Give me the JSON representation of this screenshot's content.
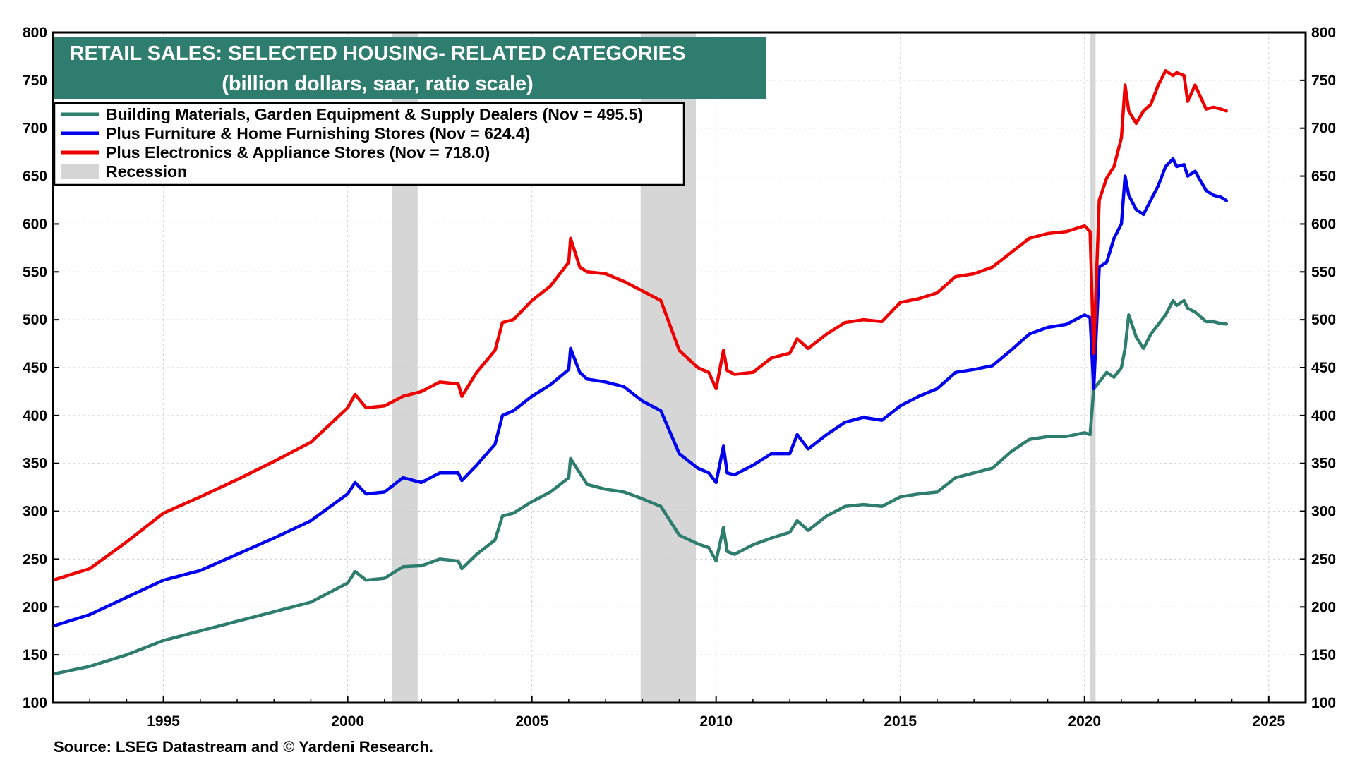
{
  "chart_data": {
    "type": "line",
    "title": "RETAIL SALES: SELECTED HOUSING- RELATED CATEGORIES",
    "subtitle": "(billion dollars, saar, ratio scale)",
    "source": "Source: LSEG Datastream and © Yardeni Research.",
    "ylim": [
      100,
      800
    ],
    "xlim": [
      1992.0,
      2026.0
    ],
    "yticks": [
      "800",
      "750",
      "700",
      "650",
      "600",
      "550",
      "500",
      "450",
      "400",
      "350",
      "300",
      "250",
      "200",
      "150",
      "100"
    ],
    "xticks": [
      "1995",
      "2000",
      "2005",
      "2010",
      "2015",
      "2020",
      "2025"
    ],
    "grid": true,
    "recessions": [
      [
        2001.2,
        2001.9
      ],
      [
        2007.95,
        2009.45
      ],
      [
        2020.15,
        2020.3
      ]
    ],
    "legend": {
      "placement": "top-left",
      "entries": [
        "Building Materials, Garden Equipment & Supply Dealers (Nov = 495.5)",
        "Plus Furniture & Home Furnishing Stores (Nov = 624.4)",
        "Plus Electronics & Appliance Stores (Nov = 718.0)",
        "Recession"
      ]
    },
    "colors": {
      "building": "#2e7d6f",
      "furniture": "#0000ee",
      "electronics": "#ee0000",
      "recession": "#d6d6d6",
      "title_bg": "#2e7d6f"
    },
    "series": [
      {
        "name": "Building Materials, Garden Equipment & Supply Dealers",
        "color": "#2e7d6f",
        "x": [
          1992.0,
          1993.0,
          1994.0,
          1995.0,
          1996.0,
          1997.0,
          1998.0,
          1999.0,
          2000.0,
          2000.2,
          2000.5,
          2001.0,
          2001.5,
          2002.0,
          2002.5,
          2003.0,
          2003.1,
          2003.5,
          2004.0,
          2004.2,
          2004.5,
          2005.0,
          2005.5,
          2006.0,
          2006.05,
          2006.3,
          2006.5,
          2007.0,
          2007.5,
          2008.0,
          2008.5,
          2009.0,
          2009.5,
          2009.8,
          2010.0,
          2010.2,
          2010.3,
          2010.5,
          2011.0,
          2011.5,
          2012.0,
          2012.2,
          2012.5,
          2013.0,
          2013.5,
          2014.0,
          2014.5,
          2015.0,
          2015.5,
          2016.0,
          2016.5,
          2017.0,
          2017.5,
          2018.0,
          2018.5,
          2019.0,
          2019.5,
          2020.0,
          2020.15,
          2020.25,
          2020.4,
          2020.6,
          2020.8,
          2021.0,
          2021.1,
          2021.2,
          2021.4,
          2021.6,
          2021.8,
          2022.0,
          2022.2,
          2022.4,
          2022.5,
          2022.7,
          2022.8,
          2023.0,
          2023.3,
          2023.5,
          2023.7,
          2023.85
        ],
        "values": [
          130,
          138,
          150,
          165,
          175,
          185,
          195,
          205,
          225,
          237,
          228,
          230,
          242,
          243,
          250,
          248,
          240,
          255,
          270,
          295,
          298,
          310,
          320,
          335,
          355,
          340,
          328,
          323,
          320,
          313,
          305,
          275,
          266,
          262,
          248,
          283,
          258,
          255,
          265,
          272,
          278,
          290,
          280,
          295,
          305,
          307,
          305,
          315,
          318,
          320,
          335,
          340,
          345,
          362,
          375,
          378,
          378,
          382,
          380,
          428,
          435,
          445,
          440,
          450,
          470,
          505,
          482,
          470,
          485,
          495,
          505,
          520,
          515,
          520,
          512,
          508,
          498,
          498,
          496,
          495.5
        ]
      },
      {
        "name": "Plus Furniture & Home Furnishing Stores",
        "color": "#0000ee",
        "x": [
          1992.0,
          1993.0,
          1994.0,
          1995.0,
          1996.0,
          1997.0,
          1998.0,
          1999.0,
          2000.0,
          2000.2,
          2000.5,
          2001.0,
          2001.5,
          2002.0,
          2002.5,
          2003.0,
          2003.1,
          2003.5,
          2004.0,
          2004.2,
          2004.5,
          2005.0,
          2005.5,
          2006.0,
          2006.05,
          2006.3,
          2006.5,
          2007.0,
          2007.5,
          2008.0,
          2008.5,
          2009.0,
          2009.5,
          2009.8,
          2010.0,
          2010.2,
          2010.3,
          2010.5,
          2011.0,
          2011.5,
          2012.0,
          2012.2,
          2012.5,
          2013.0,
          2013.5,
          2014.0,
          2014.5,
          2015.0,
          2015.5,
          2016.0,
          2016.5,
          2017.0,
          2017.5,
          2018.0,
          2018.5,
          2019.0,
          2019.5,
          2020.0,
          2020.15,
          2020.25,
          2020.4,
          2020.6,
          2020.8,
          2021.0,
          2021.1,
          2021.2,
          2021.4,
          2021.6,
          2021.8,
          2022.0,
          2022.2,
          2022.4,
          2022.5,
          2022.7,
          2022.8,
          2023.0,
          2023.3,
          2023.5,
          2023.7,
          2023.85
        ],
        "values": [
          180,
          192,
          210,
          228,
          238,
          255,
          272,
          290,
          318,
          330,
          318,
          320,
          335,
          330,
          340,
          340,
          332,
          348,
          370,
          400,
          405,
          420,
          432,
          448,
          470,
          445,
          438,
          435,
          430,
          415,
          405,
          360,
          345,
          340,
          330,
          368,
          340,
          338,
          348,
          360,
          360,
          380,
          365,
          380,
          393,
          398,
          395,
          410,
          420,
          428,
          445,
          448,
          452,
          468,
          485,
          492,
          495,
          505,
          502,
          428,
          555,
          560,
          585,
          600,
          650,
          630,
          615,
          610,
          625,
          640,
          660,
          668,
          660,
          662,
          650,
          655,
          635,
          630,
          628,
          624.4
        ]
      },
      {
        "name": "Plus Electronics & Appliance Stores",
        "color": "#ee0000",
        "x": [
          1992.0,
          1993.0,
          1994.0,
          1995.0,
          1996.0,
          1997.0,
          1998.0,
          1999.0,
          2000.0,
          2000.2,
          2000.5,
          2001.0,
          2001.5,
          2002.0,
          2002.5,
          2003.0,
          2003.1,
          2003.5,
          2004.0,
          2004.2,
          2004.5,
          2005.0,
          2005.5,
          2006.0,
          2006.05,
          2006.3,
          2006.5,
          2007.0,
          2007.5,
          2008.0,
          2008.5,
          2009.0,
          2009.5,
          2009.8,
          2010.0,
          2010.2,
          2010.3,
          2010.5,
          2011.0,
          2011.5,
          2012.0,
          2012.2,
          2012.5,
          2013.0,
          2013.5,
          2014.0,
          2014.5,
          2015.0,
          2015.5,
          2016.0,
          2016.5,
          2017.0,
          2017.5,
          2018.0,
          2018.5,
          2019.0,
          2019.5,
          2020.0,
          2020.15,
          2020.25,
          2020.4,
          2020.6,
          2020.8,
          2021.0,
          2021.1,
          2021.2,
          2021.4,
          2021.6,
          2021.8,
          2022.0,
          2022.2,
          2022.4,
          2022.5,
          2022.7,
          2022.8,
          2023.0,
          2023.3,
          2023.5,
          2023.7,
          2023.85
        ],
        "values": [
          228,
          240,
          268,
          298,
          315,
          333,
          352,
          372,
          408,
          422,
          408,
          410,
          420,
          425,
          435,
          433,
          420,
          445,
          468,
          497,
          500,
          520,
          535,
          560,
          585,
          555,
          550,
          548,
          540,
          530,
          520,
          468,
          450,
          445,
          428,
          468,
          447,
          443,
          445,
          460,
          465,
          480,
          470,
          485,
          497,
          500,
          498,
          518,
          522,
          528,
          545,
          548,
          555,
          570,
          585,
          590,
          592,
          598,
          592,
          465,
          625,
          648,
          660,
          690,
          745,
          718,
          705,
          718,
          725,
          745,
          760,
          755,
          758,
          755,
          728,
          745,
          720,
          722,
          720,
          718.0
        ]
      }
    ]
  }
}
